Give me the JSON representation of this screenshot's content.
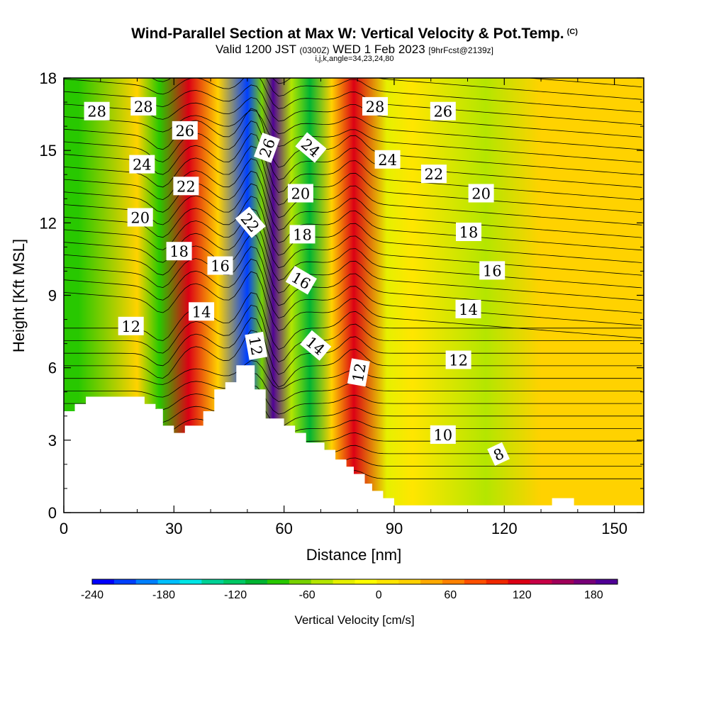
{
  "chart_data": {
    "type": "heatmap",
    "title": "Wind-Parallel Section at Max W: Vertical Velocity & Pot.Temp.",
    "title_suffix": "(C)",
    "subtitle_main": "Valid 1200 JST",
    "subtitle_utc": "(0300Z)",
    "subtitle_date": "WED 1 Feb 2023",
    "subtitle_fcst": "[9hrFcst@2139z]",
    "subtitle_params": "i,j,k,angle=34,23,24,80",
    "xlabel": "Distance [nm]",
    "ylabel": "Height [Kft MSL]",
    "xlim": [
      0,
      158
    ],
    "ylim": [
      0,
      18
    ],
    "x_ticks": [
      "0",
      "30",
      "60",
      "90",
      "120",
      "150"
    ],
    "y_ticks": [
      "0",
      "3",
      "6",
      "9",
      "12",
      "15",
      "18"
    ],
    "colorbar": {
      "title": "Vertical Velocity [cm/s]",
      "range": [
        -240,
        200
      ],
      "tick_labels": [
        "-240",
        "-180",
        "-120",
        "-60",
        "0",
        "60",
        "120",
        "180"
      ],
      "colors": [
        "#0000ff",
        "#0040ff",
        "#0080ff",
        "#00c0ff",
        "#00e6e6",
        "#00d296",
        "#00c864",
        "#00b432",
        "#28c800",
        "#78d200",
        "#b4e600",
        "#e6f000",
        "#ffff00",
        "#ffe600",
        "#ffd200",
        "#ffaa00",
        "#ff8200",
        "#ff5000",
        "#f02800",
        "#dc0014",
        "#c80046",
        "#a0005a",
        "#780078",
        "#500096"
      ]
    },
    "terrain": [
      [
        0,
        4.2
      ],
      [
        3,
        4.2
      ],
      [
        3,
        4.5
      ],
      [
        6,
        4.5
      ],
      [
        6,
        4.8
      ],
      [
        22,
        4.8
      ],
      [
        22,
        4.5
      ],
      [
        25,
        4.5
      ],
      [
        25,
        4.3
      ],
      [
        27,
        4.3
      ],
      [
        27,
        3.6
      ],
      [
        30,
        3.6
      ],
      [
        30,
        3.3
      ],
      [
        33,
        3.3
      ],
      [
        33,
        3.6
      ],
      [
        38,
        3.6
      ],
      [
        38,
        4.2
      ],
      [
        41,
        4.2
      ],
      [
        41,
        5.1
      ],
      [
        44,
        5.1
      ],
      [
        44,
        5.4
      ],
      [
        47,
        5.4
      ],
      [
        47,
        6.1
      ],
      [
        52,
        6.1
      ],
      [
        52,
        5.1
      ],
      [
        55,
        5.1
      ],
      [
        55,
        3.9
      ],
      [
        60,
        3.9
      ],
      [
        60,
        3.6
      ],
      [
        63,
        3.6
      ],
      [
        63,
        3.3
      ],
      [
        66,
        3.3
      ],
      [
        66,
        2.9
      ],
      [
        71,
        2.9
      ],
      [
        71,
        2.6
      ],
      [
        74,
        2.6
      ],
      [
        74,
        2.2
      ],
      [
        77,
        2.2
      ],
      [
        77,
        1.9
      ],
      [
        79,
        1.9
      ],
      [
        79,
        1.6
      ],
      [
        82,
        1.6
      ],
      [
        82,
        1.2
      ],
      [
        84,
        1.2
      ],
      [
        84,
        0.9
      ],
      [
        87,
        0.9
      ],
      [
        87,
        0.6
      ],
      [
        90,
        0.6
      ],
      [
        90,
        0.3
      ],
      [
        133,
        0.3
      ],
      [
        133,
        0.6
      ],
      [
        139,
        0.6
      ],
      [
        139,
        0.3
      ],
      [
        158,
        0.3
      ]
    ],
    "w_columns": [
      {
        "x": 4,
        "w": -80
      },
      {
        "x": 20,
        "w": 20
      },
      {
        "x": 26,
        "w": -90
      },
      {
        "x": 34,
        "w": 110
      },
      {
        "x": 42,
        "w": 20
      },
      {
        "x": 50,
        "w": -220
      },
      {
        "x": 54,
        "w": -60
      },
      {
        "x": 57,
        "w": 190
      },
      {
        "x": 62,
        "w": -40
      },
      {
        "x": 67,
        "w": -100
      },
      {
        "x": 73,
        "w": 20
      },
      {
        "x": 79,
        "w": 120
      },
      {
        "x": 88,
        "w": -30
      },
      {
        "x": 95,
        "w": 10
      },
      {
        "x": 115,
        "w": -50
      },
      {
        "x": 130,
        "w": 20
      }
    ],
    "theta_levels": [
      8,
      10,
      12,
      14,
      16,
      18,
      20,
      22,
      24,
      26,
      28
    ],
    "contour_labels": [
      {
        "text": "28",
        "x": 9,
        "y": 16.6,
        "rot": 0
      },
      {
        "text": "28",
        "x": 21.7,
        "y": 16.8,
        "rot": 0
      },
      {
        "text": "26",
        "x": 33,
        "y": 15.8,
        "rot": 0
      },
      {
        "text": "24",
        "x": 21.3,
        "y": 14.4,
        "rot": 0
      },
      {
        "text": "22",
        "x": 33.3,
        "y": 13.5,
        "rot": 0
      },
      {
        "text": "20",
        "x": 20.8,
        "y": 12.2,
        "rot": 0
      },
      {
        "text": "18",
        "x": 31.4,
        "y": 10.8,
        "rot": 0
      },
      {
        "text": "16",
        "x": 42.6,
        "y": 10.2,
        "rot": 0
      },
      {
        "text": "14",
        "x": 37.5,
        "y": 8.3,
        "rot": 0
      },
      {
        "text": "12",
        "x": 18.3,
        "y": 7.7,
        "rot": 0
      },
      {
        "text": "12",
        "x": 52.2,
        "y": 6.9,
        "rot": 80
      },
      {
        "text": "22",
        "x": 50.7,
        "y": 12.0,
        "rot": 50
      },
      {
        "text": "26",
        "x": 55.5,
        "y": 15.1,
        "rot": -70
      },
      {
        "text": "24",
        "x": 67.2,
        "y": 15.1,
        "rot": 40
      },
      {
        "text": "20",
        "x": 64.5,
        "y": 13.2,
        "rot": 0
      },
      {
        "text": "18",
        "x": 65.0,
        "y": 11.5,
        "rot": 0
      },
      {
        "text": "16",
        "x": 64.6,
        "y": 9.6,
        "rot": 30
      },
      {
        "text": "14",
        "x": 68.5,
        "y": 6.9,
        "rot": 40
      },
      {
        "text": "12",
        "x": 80.5,
        "y": 5.8,
        "rot": -80
      },
      {
        "text": "28",
        "x": 84.8,
        "y": 16.8,
        "rot": 0
      },
      {
        "text": "26",
        "x": 103.3,
        "y": 16.6,
        "rot": 0
      },
      {
        "text": "24",
        "x": 88.2,
        "y": 14.6,
        "rot": 0
      },
      {
        "text": "22",
        "x": 100.8,
        "y": 14.0,
        "rot": 0
      },
      {
        "text": "20",
        "x": 113.7,
        "y": 13.2,
        "rot": 0
      },
      {
        "text": "18",
        "x": 110.3,
        "y": 11.6,
        "rot": 0
      },
      {
        "text": "16",
        "x": 116.7,
        "y": 10.0,
        "rot": 0
      },
      {
        "text": "14",
        "x": 110.2,
        "y": 8.4,
        "rot": 0
      },
      {
        "text": "12",
        "x": 107.5,
        "y": 6.3,
        "rot": 0
      },
      {
        "text": "10",
        "x": 103.3,
        "y": 3.2,
        "rot": 0
      },
      {
        "text": "8",
        "x": 118.5,
        "y": 2.4,
        "rot": -25
      }
    ]
  }
}
